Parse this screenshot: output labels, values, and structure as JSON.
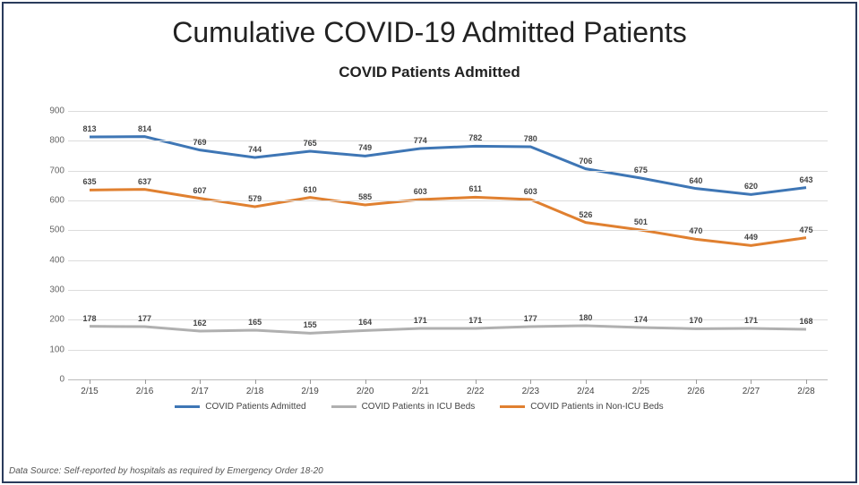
{
  "title": "Cumulative COVID-19 Admitted Patients",
  "subtitle": "COVID Patients Admitted",
  "footer": "Data Source: Self-reported by hospitals as required by Emergency Order 18-20",
  "chart": {
    "type": "line",
    "ylim": [
      0,
      900
    ],
    "ytick_step": 100,
    "yticks": [
      0,
      100,
      200,
      300,
      400,
      500,
      600,
      700,
      800,
      900
    ],
    "categories": [
      "2/15",
      "2/16",
      "2/17",
      "2/18",
      "2/19",
      "2/20",
      "2/21",
      "2/22",
      "2/23",
      "2/24",
      "2/25",
      "2/26",
      "2/27",
      "2/28"
    ],
    "grid_color": "#dcdcdc",
    "axis_color": "#bbbbbb",
    "tick_color": "#999999",
    "background_color": "#ffffff",
    "tick_fontsize": 10,
    "datalabel_fontsize": 9,
    "line_width": 3,
    "series": [
      {
        "name": "COVID Patients Admitted",
        "color": "#3e76b5",
        "values": [
          813,
          814,
          769,
          744,
          765,
          749,
          774,
          782,
          780,
          706,
          675,
          640,
          620,
          643
        ]
      },
      {
        "name": "COVID Patients in ICU Beds",
        "color": "#b0b0b0",
        "values": [
          178,
          177,
          162,
          165,
          155,
          164,
          171,
          171,
          177,
          180,
          174,
          170,
          171,
          168
        ]
      },
      {
        "name": "COVID Patients in Non-ICU Beds",
        "color": "#e08030",
        "values": [
          635,
          637,
          607,
          579,
          610,
          585,
          603,
          611,
          603,
          526,
          501,
          470,
          449,
          475
        ]
      }
    ]
  }
}
